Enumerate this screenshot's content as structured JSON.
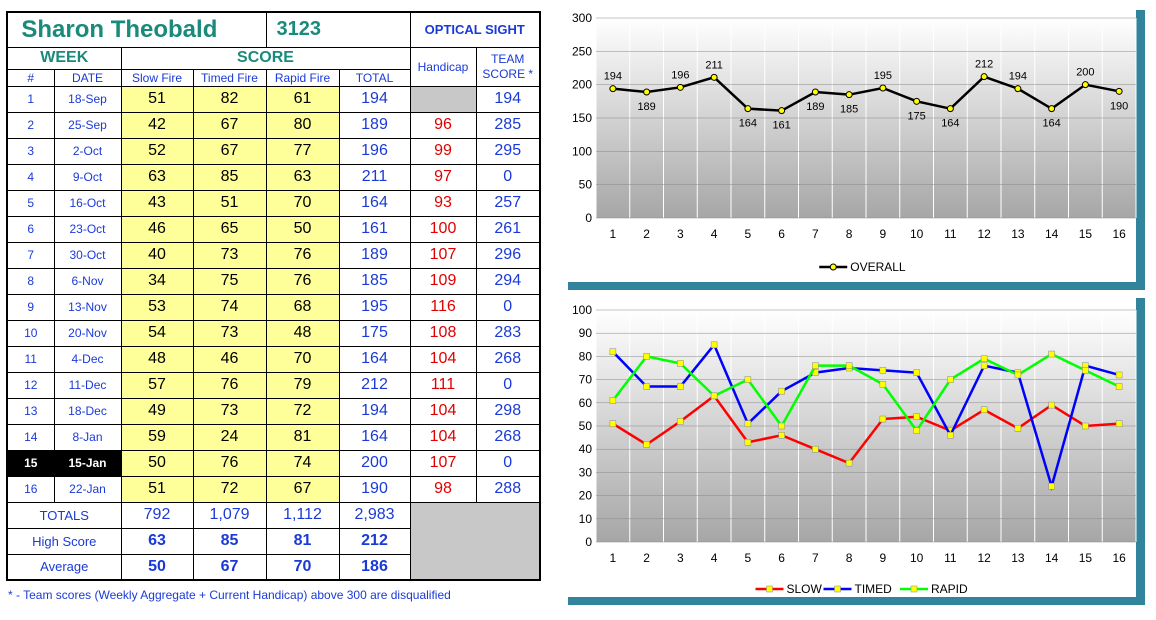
{
  "header": {
    "name": "Sharon Theobald",
    "number": "3123",
    "sight": "OPTICAL SIGHT"
  },
  "columns": {
    "week": "WEEK",
    "score": "SCORE",
    "handicap": "Handicap",
    "team_score": "TEAM SCORE *",
    "num": "#",
    "date": "DATE",
    "slow": "Slow Fire",
    "timed": "Timed Fire",
    "rapid": "Rapid Fire",
    "total": "TOTAL"
  },
  "rows": [
    {
      "num": "1",
      "date": "18-Sep",
      "slow": "51",
      "timed": "82",
      "rapid": "61",
      "total": "194",
      "handicap": "",
      "team": "194"
    },
    {
      "num": "2",
      "date": "25-Sep",
      "slow": "42",
      "timed": "67",
      "rapid": "80",
      "total": "189",
      "handicap": "96",
      "team": "285"
    },
    {
      "num": "3",
      "date": "2-Oct",
      "slow": "52",
      "timed": "67",
      "rapid": "77",
      "total": "196",
      "handicap": "99",
      "team": "295"
    },
    {
      "num": "4",
      "date": "9-Oct",
      "slow": "63",
      "timed": "85",
      "rapid": "63",
      "total": "211",
      "handicap": "97",
      "team": "0"
    },
    {
      "num": "5",
      "date": "16-Oct",
      "slow": "43",
      "timed": "51",
      "rapid": "70",
      "total": "164",
      "handicap": "93",
      "team": "257"
    },
    {
      "num": "6",
      "date": "23-Oct",
      "slow": "46",
      "timed": "65",
      "rapid": "50",
      "total": "161",
      "handicap": "100",
      "team": "261"
    },
    {
      "num": "7",
      "date": "30-Oct",
      "slow": "40",
      "timed": "73",
      "rapid": "76",
      "total": "189",
      "handicap": "107",
      "team": "296"
    },
    {
      "num": "8",
      "date": "6-Nov",
      "slow": "34",
      "timed": "75",
      "rapid": "76",
      "total": "185",
      "handicap": "109",
      "team": "294"
    },
    {
      "num": "9",
      "date": "13-Nov",
      "slow": "53",
      "timed": "74",
      "rapid": "68",
      "total": "195",
      "handicap": "116",
      "team": "0"
    },
    {
      "num": "10",
      "date": "20-Nov",
      "slow": "54",
      "timed": "73",
      "rapid": "48",
      "total": "175",
      "handicap": "108",
      "team": "283"
    },
    {
      "num": "11",
      "date": "4-Dec",
      "slow": "48",
      "timed": "46",
      "rapid": "70",
      "total": "164",
      "handicap": "104",
      "team": "268"
    },
    {
      "num": "12",
      "date": "11-Dec",
      "slow": "57",
      "timed": "76",
      "rapid": "79",
      "total": "212",
      "handicap": "111",
      "team": "0"
    },
    {
      "num": "13",
      "date": "18-Dec",
      "slow": "49",
      "timed": "73",
      "rapid": "72",
      "total": "194",
      "handicap": "104",
      "team": "298"
    },
    {
      "num": "14",
      "date": "8-Jan",
      "slow": "59",
      "timed": "24",
      "rapid": "81",
      "total": "164",
      "handicap": "104",
      "team": "268"
    },
    {
      "num": "15",
      "date": "15-Jan",
      "slow": "50",
      "timed": "76",
      "rapid": "74",
      "total": "200",
      "handicap": "107",
      "team": "0"
    },
    {
      "num": "16",
      "date": "22-Jan",
      "slow": "51",
      "timed": "72",
      "rapid": "67",
      "total": "190",
      "handicap": "98",
      "team": "288"
    }
  ],
  "current_week_index": 14,
  "summary": {
    "totals": {
      "label": "TOTALS",
      "slow": "792",
      "timed": "1,079",
      "rapid": "1,112",
      "total": "2,983"
    },
    "high": {
      "label": "High Score",
      "slow": "63",
      "timed": "85",
      "rapid": "81",
      "total": "212"
    },
    "avg": {
      "label": "Average",
      "slow": "50",
      "timed": "67",
      "rapid": "70",
      "total": "186"
    }
  },
  "footnote": "* - Team scores (Weekly Aggregate + Current Handicap) above 300 are disqualified",
  "colors": {
    "panel": "#31849b",
    "slow": "#ff0000",
    "timed": "#0000ff",
    "rapid": "#00ff00",
    "overall": "#000000",
    "marker": "#ffff00"
  },
  "chart_data": [
    {
      "type": "line",
      "x": [
        1,
        2,
        3,
        4,
        5,
        6,
        7,
        8,
        9,
        10,
        11,
        12,
        13,
        14,
        15,
        16
      ],
      "series": [
        {
          "name": "OVERALL",
          "values": [
            194,
            189,
            196,
            211,
            164,
            161,
            189,
            185,
            195,
            175,
            164,
            212,
            194,
            164,
            200,
            190
          ]
        }
      ],
      "ylim": [
        0,
        300
      ],
      "yticks": [
        0,
        50,
        100,
        150,
        200,
        250,
        300
      ],
      "data_labels": true,
      "legend": "bottom",
      "grid": true
    },
    {
      "type": "line",
      "x": [
        1,
        2,
        3,
        4,
        5,
        6,
        7,
        8,
        9,
        10,
        11,
        12,
        13,
        14,
        15,
        16
      ],
      "series": [
        {
          "name": "SLOW",
          "values": [
            51,
            42,
            52,
            63,
            43,
            46,
            40,
            34,
            53,
            54,
            48,
            57,
            49,
            59,
            50,
            51
          ]
        },
        {
          "name": "TIMED",
          "values": [
            82,
            67,
            67,
            85,
            51,
            65,
            73,
            75,
            74,
            73,
            46,
            76,
            73,
            24,
            76,
            72
          ]
        },
        {
          "name": "RAPID",
          "values": [
            61,
            80,
            77,
            63,
            70,
            50,
            76,
            76,
            68,
            48,
            70,
            79,
            72,
            81,
            74,
            67
          ]
        }
      ],
      "ylim": [
        0,
        100
      ],
      "yticks": [
        0,
        10,
        20,
        30,
        40,
        50,
        60,
        70,
        80,
        90,
        100
      ],
      "legend": "bottom",
      "grid": true
    }
  ]
}
